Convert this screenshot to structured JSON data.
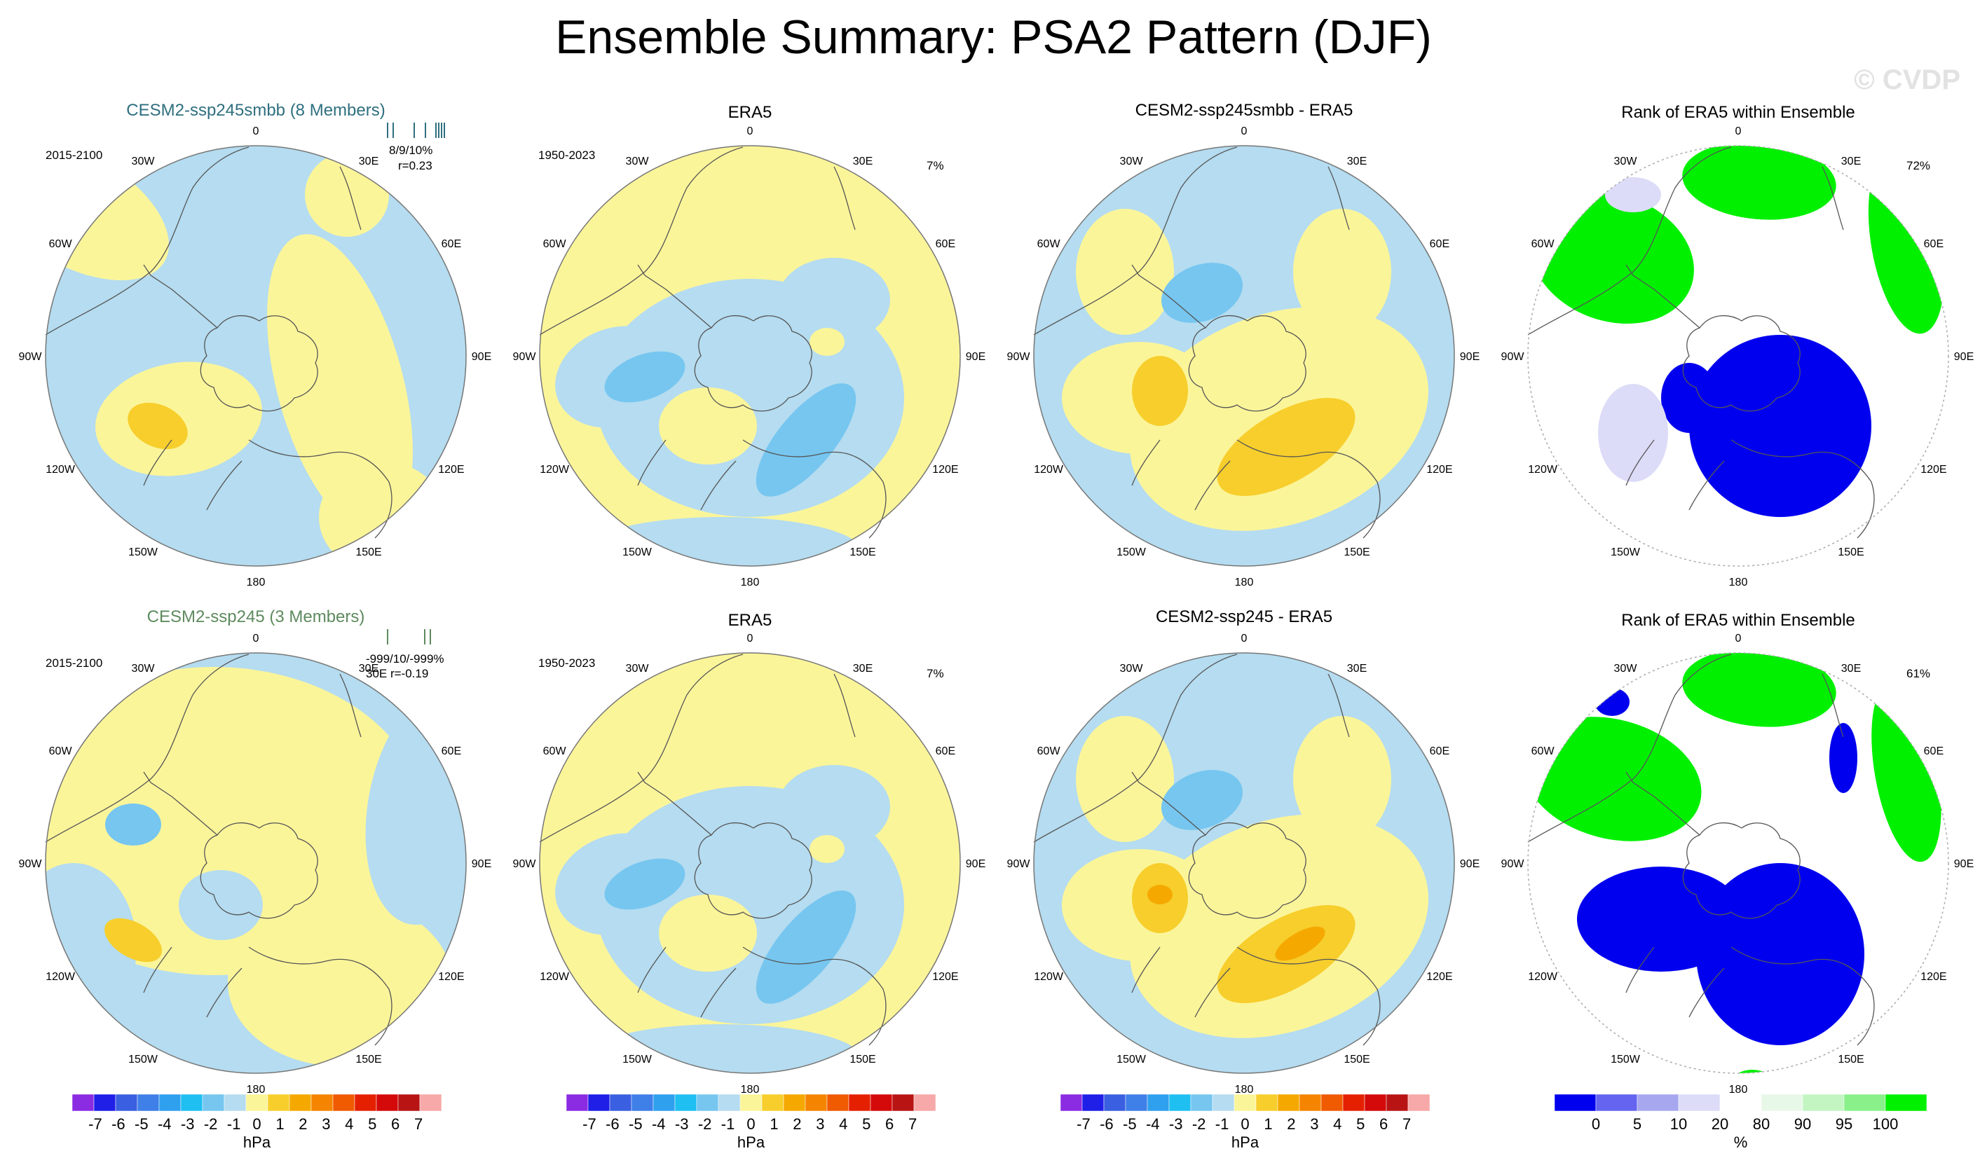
{
  "figure": {
    "title": "Ensemble Summary: PSA2 Pattern (DJF)",
    "credit": "© CVDP"
  },
  "colors": {
    "anomaly_scale": [
      "#8b2be2",
      "#1f1fe8",
      "#3a5fe0",
      "#3f7fe8",
      "#2fa0ee",
      "#1fbff2",
      "#76c6f0",
      "#b5dcf0",
      "#fbf59a",
      "#f7ce2c",
      "#f5a900",
      "#f58400",
      "#f05a00",
      "#e52000",
      "#d40a0a",
      "#b81414",
      "#f7a8a8"
    ],
    "rank_scale": [
      "#0000ee",
      "#6464f0",
      "#a7a7f0",
      "#dcdcf8",
      "#ffffff",
      "#e8f8e8",
      "#c2f5c2",
      "#8af08a",
      "#00f000"
    ],
    "land_outline": "#555555",
    "title_model1": "#2f6f7f",
    "title_model2": "#5e8a5e"
  },
  "chart_data": [
    {
      "type": "map",
      "id": "p11",
      "title": "CESM2-ssp245smbb (8 Members)",
      "period": "2015-2100",
      "stats_line1": "8/9/10%",
      "stats_line2": "r=0.23",
      "lon_labels": [
        "0",
        "30E",
        "60E",
        "90E",
        "120E",
        "150E",
        "180",
        "150W",
        "120W",
        "90W",
        "60W",
        "30W"
      ],
      "field": "PSA2 pattern anomaly",
      "units": "hPa",
      "field_range": [
        -2,
        2
      ],
      "member_ticks": [
        0.05,
        0.13,
        0.43,
        0.59,
        0.74,
        0.78,
        0.82,
        0.86
      ]
    },
    {
      "type": "map",
      "id": "p12",
      "title": "ERA5",
      "period": "1950-2023",
      "pct": "7%",
      "lon_labels": [
        "0",
        "30E",
        "60E",
        "90E",
        "120E",
        "150E",
        "180",
        "150W",
        "120W",
        "90W",
        "60W",
        "30W"
      ],
      "field": "PSA2 pattern anomaly",
      "units": "hPa",
      "field_range": [
        -2,
        1
      ]
    },
    {
      "type": "map",
      "id": "p13",
      "title": "CESM2-ssp245smbb - ERA5",
      "lon_labels": [
        "0",
        "30E",
        "60E",
        "90E",
        "120E",
        "150E",
        "180",
        "150W",
        "120W",
        "90W",
        "60W",
        "30W"
      ],
      "field": "difference",
      "units": "hPa",
      "field_range": [
        -2,
        2
      ]
    },
    {
      "type": "map",
      "id": "p14",
      "title": "Rank of ERA5 within Ensemble",
      "pct": "72%",
      "lon_labels": [
        "0",
        "30E",
        "60E",
        "90E",
        "120E",
        "150E",
        "180",
        "150W",
        "120W",
        "90W",
        "60W",
        "30W"
      ],
      "field": "rank",
      "units": "%",
      "field_range": [
        0,
        100
      ]
    },
    {
      "type": "map",
      "id": "p21",
      "title": "CESM2-ssp245 (3 Members)",
      "period": "2015-2100",
      "stats_line1": "-999/10/-999%",
      "stats_line2": "30E r=-0.19",
      "lon_labels": [
        "0",
        "30E",
        "60E",
        "90E",
        "120E",
        "150E",
        "180",
        "150W",
        "120W",
        "90W",
        "60W",
        "30W"
      ],
      "field": "PSA2 pattern anomaly",
      "units": "hPa",
      "field_range": [
        -2,
        2
      ],
      "member_ticks": [
        0.05,
        0.58,
        0.66
      ]
    },
    {
      "type": "map",
      "id": "p22",
      "title": "ERA5",
      "period": "1950-2023",
      "pct": "7%",
      "lon_labels": [
        "0",
        "30E",
        "60E",
        "90E",
        "120E",
        "150E",
        "180",
        "150W",
        "120W",
        "90W",
        "60W",
        "30W"
      ],
      "field": "PSA2 pattern anomaly",
      "units": "hPa",
      "field_range": [
        -2,
        1
      ]
    },
    {
      "type": "map",
      "id": "p23",
      "title": "CESM2-ssp245 - ERA5",
      "lon_labels": [
        "0",
        "30E",
        "60E",
        "90E",
        "120E",
        "150E",
        "180",
        "150W",
        "120W",
        "90W",
        "60W",
        "30W"
      ],
      "field": "difference",
      "units": "hPa",
      "field_range": [
        -2,
        3
      ]
    },
    {
      "type": "map",
      "id": "p24",
      "title": "Rank of ERA5 within Ensemble",
      "pct": "61%",
      "lon_labels": [
        "0",
        "30E",
        "60E",
        "90E",
        "120E",
        "150E",
        "180",
        "150W",
        "120W",
        "90W",
        "60W",
        "30W"
      ],
      "field": "rank",
      "units": "%",
      "field_range": [
        0,
        100
      ]
    }
  ],
  "colorbars": [
    {
      "id": "cb1",
      "labels": [
        "-7",
        "-6",
        "-5",
        "-4",
        "-3",
        "-2",
        "-1",
        "0",
        "1",
        "2",
        "3",
        "4",
        "5",
        "6",
        "7"
      ],
      "unit": "hPa"
    },
    {
      "id": "cb2",
      "labels": [
        "-7",
        "-6",
        "-5",
        "-4",
        "-3",
        "-2",
        "-1",
        "0",
        "1",
        "2",
        "3",
        "4",
        "5",
        "6",
        "7"
      ],
      "unit": "hPa"
    },
    {
      "id": "cb3",
      "labels": [
        "-7",
        "-6",
        "-5",
        "-4",
        "-3",
        "-2",
        "-1",
        "0",
        "1",
        "2",
        "3",
        "4",
        "5",
        "6",
        "7"
      ],
      "unit": "hPa"
    },
    {
      "id": "cb4",
      "labels": [
        "0",
        "5",
        "10",
        "20",
        "80",
        "90",
        "95",
        "100"
      ],
      "unit": "%"
    }
  ]
}
